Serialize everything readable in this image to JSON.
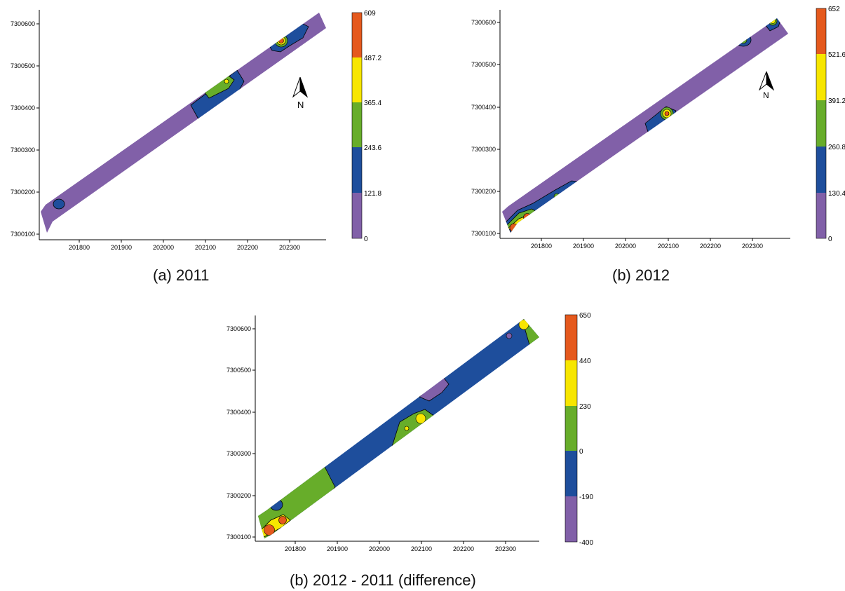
{
  "panels": [
    {
      "id": "a",
      "caption": "(a) 2011",
      "yticks": [
        "7300600",
        "7300500",
        "7300400",
        "7300300",
        "7300200",
        "7300100"
      ],
      "xticks": [
        "201800",
        "201900",
        "202000",
        "202100",
        "202200",
        "202300"
      ],
      "legend": {
        "values": [
          "609",
          "487.2",
          "365.4",
          "243.6",
          "121.8",
          "0"
        ],
        "colors": [
          "#e5591d",
          "#f7e600",
          "#67ad2a",
          "#1e4e9c",
          "#8160a8"
        ]
      },
      "north_label": "N"
    },
    {
      "id": "b",
      "caption": "(b) 2012",
      "yticks": [
        "7300600",
        "7300500",
        "7300400",
        "7300300",
        "7300200",
        "7300100"
      ],
      "xticks": [
        "201800",
        "201900",
        "202000",
        "202100",
        "202200",
        "202300"
      ],
      "legend": {
        "values": [
          "652",
          "521.6",
          "391.2",
          "260.8",
          "130.4",
          "0"
        ],
        "colors": [
          "#e5591d",
          "#f7e600",
          "#67ad2a",
          "#1e4e9c",
          "#8160a8"
        ]
      },
      "north_label": "N"
    },
    {
      "id": "c",
      "caption": "(b) 2012 - 2011 (difference)",
      "yticks": [
        "7300600",
        "7300500",
        "7300400",
        "7300300",
        "7300200",
        "7300100"
      ],
      "xticks": [
        "201800",
        "201900",
        "202000",
        "202100",
        "202200",
        "202300"
      ],
      "legend": {
        "values": [
          "650",
          "440",
          "230",
          "0",
          "-190",
          "-400"
        ],
        "colors": [
          "#e5591d",
          "#f7e600",
          "#67ad2a",
          "#1e4e9c",
          "#8160a8"
        ]
      }
    }
  ]
}
